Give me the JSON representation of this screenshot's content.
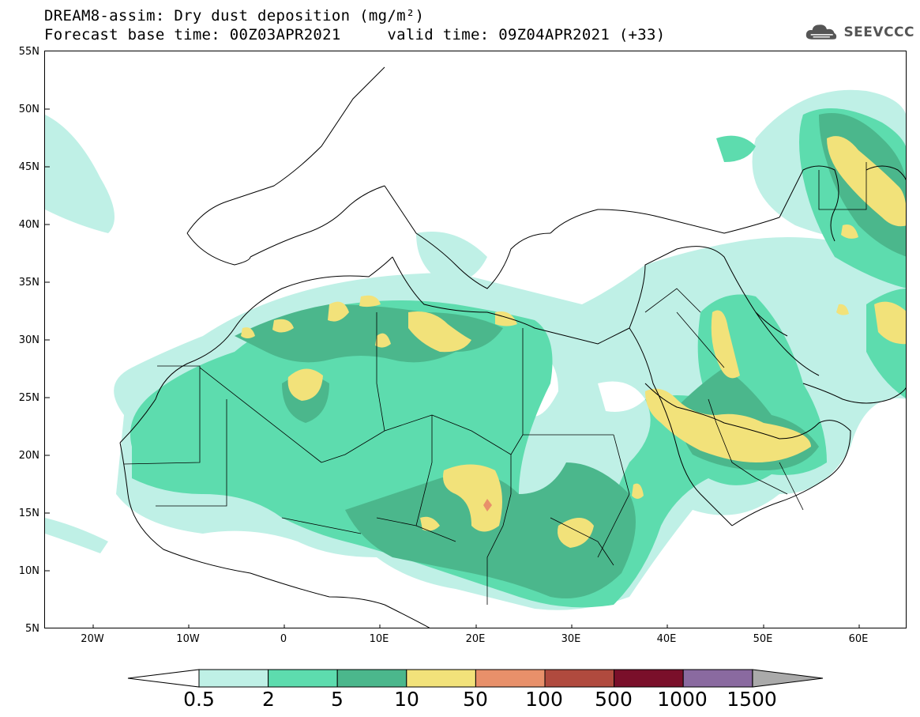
{
  "title": {
    "line1": "DREAM8-assim: Dry dust deposition (mg/m²)",
    "line2": "Forecast base time: 00Z03APR2021     valid time: 09Z04APR2021 (+33)"
  },
  "logo": {
    "text": "SEEVCCC",
    "icon": "cloud-icon"
  },
  "map": {
    "lon_range": [
      -25,
      65
    ],
    "lat_range": [
      5,
      55
    ],
    "y_axis_labels": [
      "55N",
      "50N",
      "45N",
      "40N",
      "35N",
      "30N",
      "25N",
      "20N",
      "15N",
      "10N",
      "5N"
    ],
    "x_axis_labels": [
      "20W",
      "10W",
      "0",
      "10E",
      "20E",
      "30E",
      "40E",
      "50E",
      "60E"
    ]
  },
  "colorbar": {
    "labels": [
      "0.5",
      "2",
      "5",
      "10",
      "50",
      "100",
      "500",
      "1000",
      "1500"
    ],
    "colors": [
      "#bff0e6",
      "#5ddcae",
      "#4bb78c",
      "#f2e27a",
      "#e8906a",
      "#b04a3e",
      "#7a0f2a",
      "#8a6aa0",
      "#aaaaaa"
    ]
  }
}
